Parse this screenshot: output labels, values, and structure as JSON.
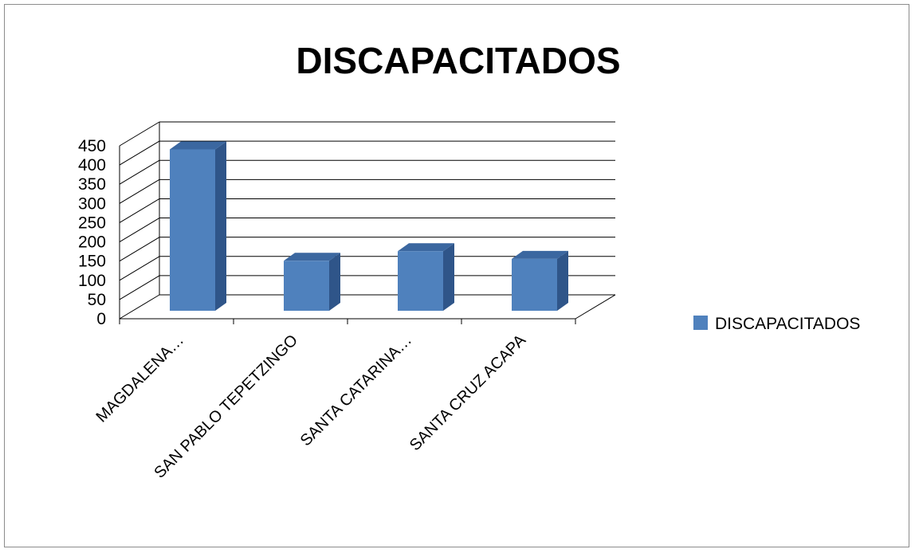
{
  "chart_data": {
    "type": "bar",
    "title": "DISCAPACITADOS",
    "categories": [
      "MAGDALENA…",
      "SAN PABLO TEPETZINGO",
      "SANTA CATARINA…",
      "SANTA CRUZ ACAPA"
    ],
    "series": [
      {
        "name": "DISCAPACITADOS",
        "values": [
          420,
          130,
          155,
          135
        ]
      }
    ],
    "ylim": [
      0,
      450
    ],
    "yticks": [
      0,
      50,
      100,
      150,
      200,
      250,
      300,
      350,
      400,
      450
    ],
    "grid": true,
    "legend": "right",
    "style": "3d-column",
    "colors": {
      "bar_front": "#4f81bd",
      "bar_side": "#2f5589",
      "bar_top": "#3b67a0",
      "gridline": "#000000",
      "frame": "#8c8c8c"
    }
  }
}
